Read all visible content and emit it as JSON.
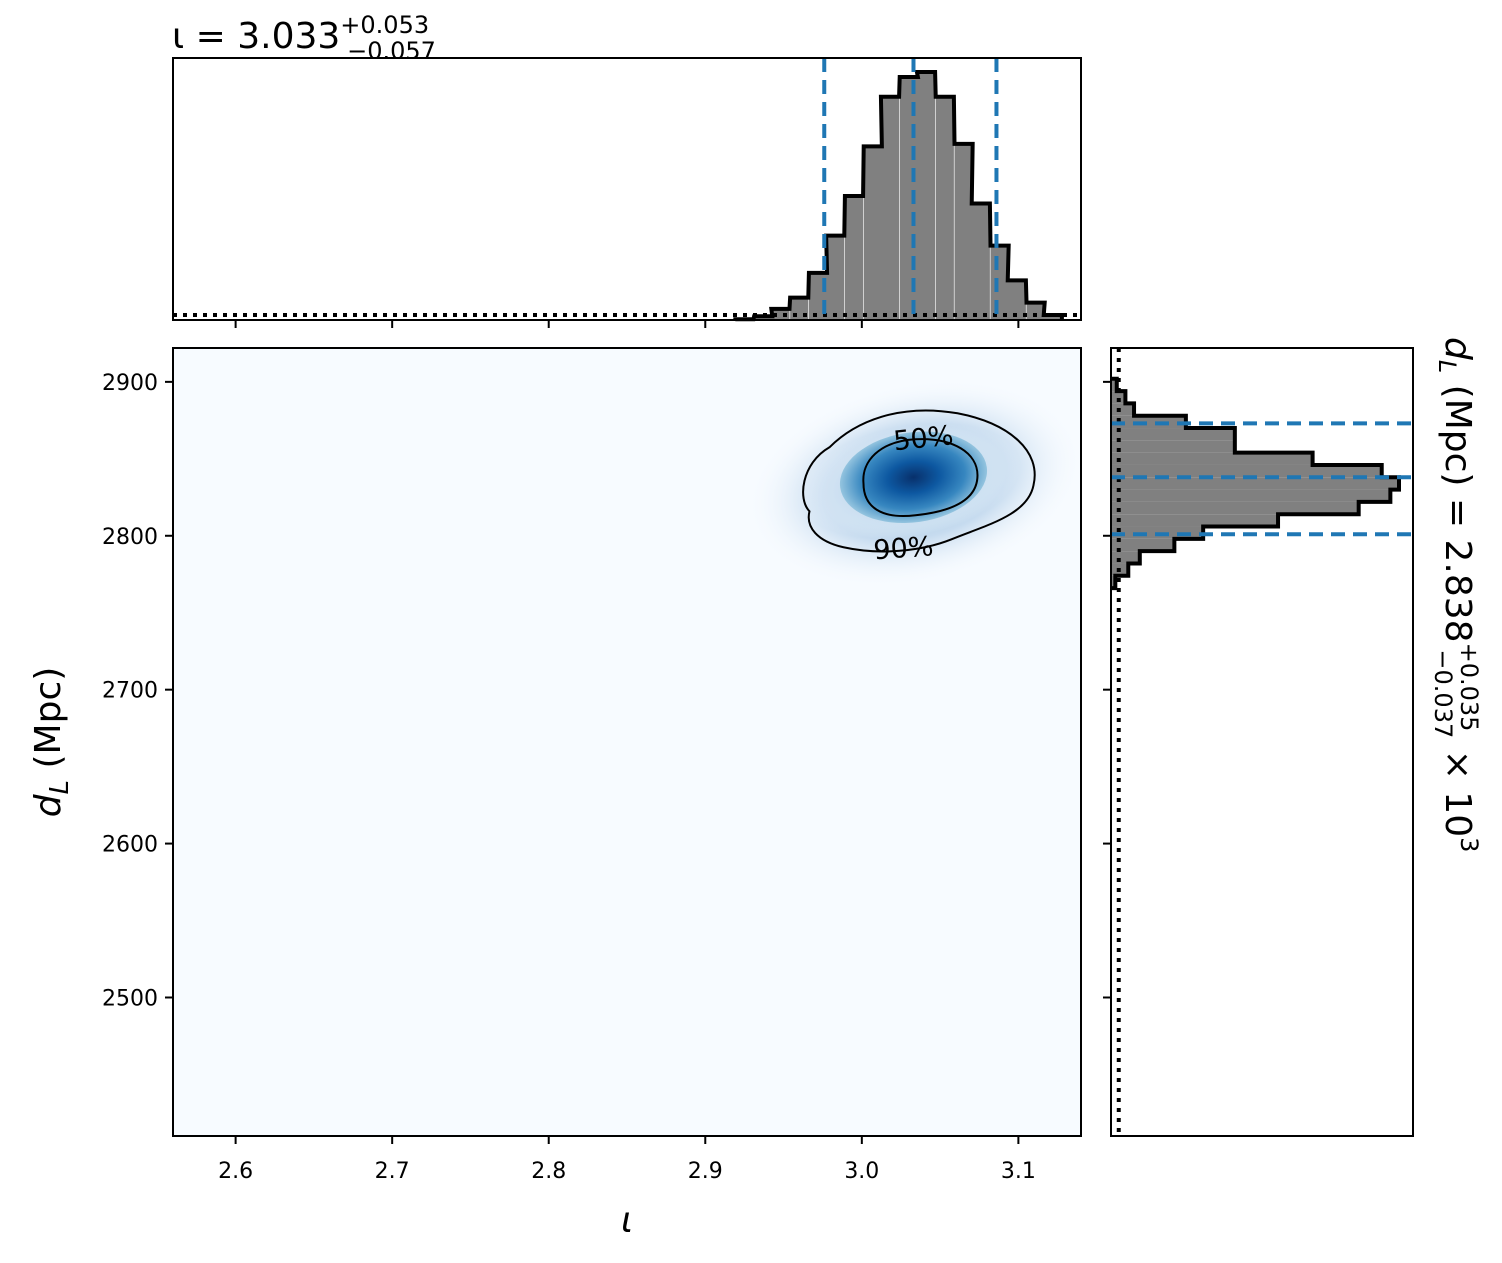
{
  "colors": {
    "hist_fill": "#808080",
    "hist_edge": "#000000",
    "quantile_line": "#1f77b4",
    "density_low": "#f7fbff",
    "density_high": "#08306b",
    "contour": "#000000",
    "prior": "#000000"
  },
  "top_title": {
    "prefix": "ι = 3.033",
    "sup": "+0.053",
    "sub": "−0.057"
  },
  "right_title": {
    "prefix": "d",
    "prefix_sub": "L",
    "mid": " (Mpc) = 2.838",
    "sup": "+0.035",
    "sub": "−0.037",
    "suffix": " × 10",
    "exp": "3"
  },
  "x_axis_label": "ι",
  "y_axis_label": {
    "main": "d",
    "sub": "L",
    "rest": " (Mpc)"
  },
  "chart_data": [
    {
      "type": "histogram",
      "name": "iota marginal",
      "xlim": [
        2.56,
        3.14
      ],
      "bin_width": 0.0116,
      "bins": [
        {
          "x": 2.925,
          "count": 0.003
        },
        {
          "x": 2.937,
          "count": 0.015
        },
        {
          "x": 2.948,
          "count": 0.045
        },
        {
          "x": 2.96,
          "count": 0.09
        },
        {
          "x": 2.972,
          "count": 0.19
        },
        {
          "x": 2.983,
          "count": 0.34
        },
        {
          "x": 2.995,
          "count": 0.5
        },
        {
          "x": 3.007,
          "count": 0.7
        },
        {
          "x": 3.018,
          "count": 0.9
        },
        {
          "x": 3.03,
          "count": 0.98
        },
        {
          "x": 3.041,
          "count": 1.0
        },
        {
          "x": 3.053,
          "count": 0.9
        },
        {
          "x": 3.065,
          "count": 0.71
        },
        {
          "x": 3.076,
          "count": 0.47
        },
        {
          "x": 3.088,
          "count": 0.3
        },
        {
          "x": 3.099,
          "count": 0.16
        },
        {
          "x": 3.111,
          "count": 0.07
        },
        {
          "x": 3.122,
          "count": 0.02
        }
      ],
      "prior_level": 0.02,
      "quantiles": [
        2.976,
        3.033,
        3.086
      ],
      "xticks": [
        2.6,
        2.7,
        2.8,
        2.9,
        3.0,
        3.1
      ]
    },
    {
      "type": "heatmap",
      "name": "joint density",
      "xlim": [
        2.56,
        3.14
      ],
      "ylim": [
        2410,
        2922
      ],
      "peak": {
        "x": 3.033,
        "y": 2838
      },
      "contour_labels": [
        "50%",
        "90%"
      ],
      "xticks": [
        2.6,
        2.7,
        2.8,
        2.9,
        3.0,
        3.1
      ],
      "xtick_labels": [
        "2.6",
        "2.7",
        "2.8",
        "2.9",
        "3.0",
        "3.1"
      ],
      "yticks": [
        2500,
        2600,
        2700,
        2800,
        2900
      ],
      "ytick_labels": [
        "2500",
        "2600",
        "2700",
        "2800",
        "2900"
      ]
    },
    {
      "type": "histogram",
      "name": "dL marginal (horizontal)",
      "ylim": [
        2410,
        2922
      ],
      "bin_width": 8,
      "bins": [
        {
          "y": 2770,
          "count": 0.015
        },
        {
          "y": 2778,
          "count": 0.06
        },
        {
          "y": 2786,
          "count": 0.1
        },
        {
          "y": 2794,
          "count": 0.22
        },
        {
          "y": 2802,
          "count": 0.32
        },
        {
          "y": 2810,
          "count": 0.58
        },
        {
          "y": 2818,
          "count": 0.86
        },
        {
          "y": 2826,
          "count": 0.97
        },
        {
          "y": 2834,
          "count": 1.0
        },
        {
          "y": 2842,
          "count": 0.94
        },
        {
          "y": 2850,
          "count": 0.7
        },
        {
          "y": 2858,
          "count": 0.43
        },
        {
          "y": 2866,
          "count": 0.43
        },
        {
          "y": 2874,
          "count": 0.26
        },
        {
          "y": 2882,
          "count": 0.08
        },
        {
          "y": 2890,
          "count": 0.05
        },
        {
          "y": 2898,
          "count": 0.02
        }
      ],
      "prior_level": 0.02,
      "quantiles": [
        2801,
        2838,
        2873
      ],
      "yticks": [
        2500,
        2600,
        2700,
        2800,
        2900
      ]
    }
  ]
}
